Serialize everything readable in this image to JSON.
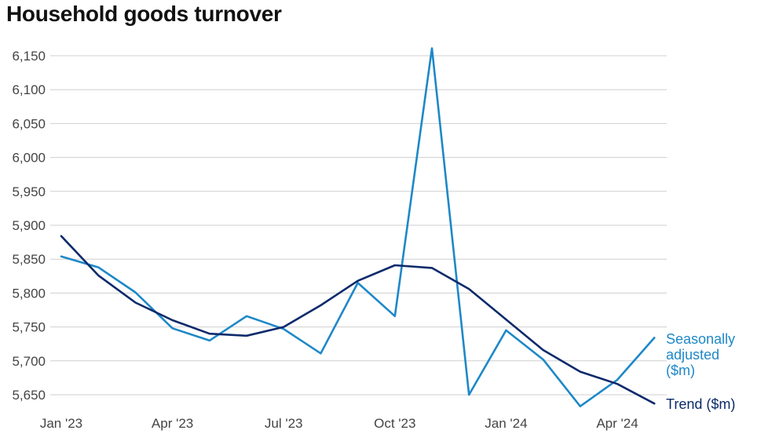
{
  "title": "Household goods turnover",
  "chart_data": {
    "type": "line",
    "title": "Household goods turnover",
    "xlabel": "",
    "ylabel": "",
    "ylim": [
      5640,
      6160
    ],
    "yticks": [
      5650,
      5700,
      5750,
      5800,
      5850,
      5900,
      5950,
      6000,
      6050,
      6100,
      6150
    ],
    "ytick_labels": [
      "5,650",
      "5,700",
      "5,750",
      "5,800",
      "5,850",
      "5,900",
      "5,950",
      "6,000",
      "6,050",
      "6,100",
      "6,150"
    ],
    "x": [
      "2023-01",
      "2023-02",
      "2023-03",
      "2023-04",
      "2023-05",
      "2023-06",
      "2023-07",
      "2023-08",
      "2023-09",
      "2023-10",
      "2023-11",
      "2023-12",
      "2024-01",
      "2024-02",
      "2024-03",
      "2024-04",
      "2024-05"
    ],
    "xticks": [
      "2023-01",
      "2023-04",
      "2023-07",
      "2023-10",
      "2024-01",
      "2024-04"
    ],
    "xtick_labels": [
      "Jan '23",
      "Apr '23",
      "Jul '23",
      "Oct '23",
      "Jan '24",
      "Apr '24"
    ],
    "grid": true,
    "legend": "right, at line ends",
    "series": [
      {
        "name": "Seasonally adjusted ($m)",
        "legend_lines": [
          "Seasonally",
          "adjusted",
          "($m)"
        ],
        "color": "#1e88c7",
        "values": [
          5854,
          5838,
          5801,
          5748,
          5730,
          5766,
          5747,
          5711,
          5815,
          5766,
          6161,
          5650,
          5745,
          5702,
          5633,
          5672,
          5734
        ]
      },
      {
        "name": "Trend ($m)",
        "color": "#0c2a6b",
        "values": [
          5884,
          5826,
          5786,
          5760,
          5740,
          5737,
          5750,
          5782,
          5818,
          5841,
          5837,
          5806,
          5761,
          5716,
          5684,
          5666,
          5637
        ]
      }
    ]
  }
}
